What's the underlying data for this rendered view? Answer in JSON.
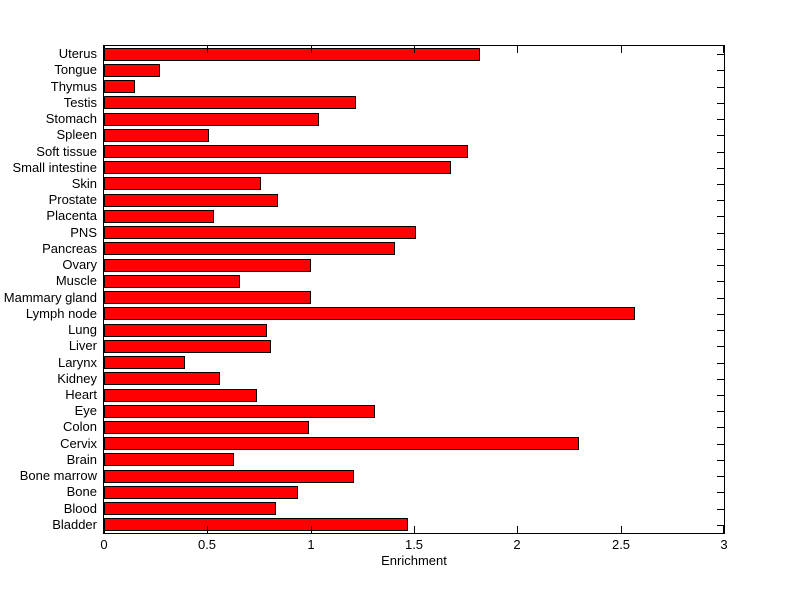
{
  "chart_data": {
    "type": "bar",
    "orientation": "horizontal",
    "title": "",
    "xlabel": "Enrichment",
    "ylabel": "",
    "xlim": [
      0,
      3
    ],
    "xticks": [
      0,
      0.5,
      1,
      1.5,
      2,
      2.5,
      3
    ],
    "xtick_labels": [
      "0",
      "0.5",
      "1",
      "1.5",
      "2",
      "2.5",
      "3"
    ],
    "grid": false,
    "legend": false,
    "bar_color": "#FF0000",
    "bar_edge_color": "#000000",
    "axis_color": "#000000",
    "background_color": "#FFFFFF",
    "categories": [
      "Uterus",
      "Tongue",
      "Thymus",
      "Testis",
      "Stomach",
      "Spleen",
      "Soft tissue",
      "Small intestine",
      "Skin",
      "Prostate",
      "Placenta",
      "PNS",
      "Pancreas",
      "Ovary",
      "Muscle",
      "Mammary gland",
      "Lymph node",
      "Lung",
      "Liver",
      "Larynx",
      "Kidney",
      "Heart",
      "Eye",
      "Colon",
      "Cervix",
      "Brain",
      "Bone marrow",
      "Bone",
      "Blood",
      "Bladder"
    ],
    "values": [
      1.82,
      0.27,
      0.15,
      1.22,
      1.04,
      0.51,
      1.76,
      1.68,
      0.76,
      0.84,
      0.53,
      1.51,
      1.41,
      1.0,
      0.66,
      1.0,
      2.57,
      0.79,
      0.81,
      0.39,
      0.56,
      0.74,
      1.31,
      0.99,
      2.3,
      0.63,
      1.21,
      0.94,
      0.83,
      1.47
    ]
  }
}
